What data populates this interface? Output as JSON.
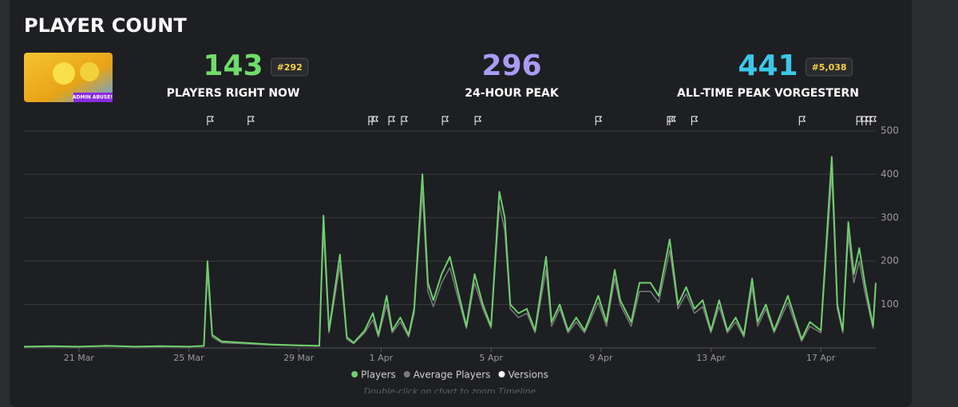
{
  "header": {
    "title": "PLAYER COUNT",
    "thumbnail_caption": "ADMIN ABUSE!"
  },
  "stats": [
    {
      "value": "143",
      "badge": "#292",
      "label": "PLAYERS RIGHT NOW",
      "color": "#6fdc6a"
    },
    {
      "value": "296",
      "label": "24-HOUR PEAK",
      "color": "#a99cf5"
    },
    {
      "value": "441",
      "badge": "#5,038",
      "label": "ALL-TIME PEAK VORGESTERN",
      "color": "#3cc8e8"
    }
  ],
  "chart_data": {
    "type": "line",
    "x": [
      -2,
      -1,
      0,
      1,
      2,
      3,
      4,
      4.55,
      4.68,
      4.85,
      5.2,
      6,
      7,
      8,
      8.75,
      8.9,
      9.1,
      9.5,
      9.75,
      10,
      10.4,
      10.7,
      10.9,
      11.2,
      11.4,
      11.7,
      12,
      12.2,
      12.5,
      12.7,
      12.9,
      13.2,
      13.5,
      13.8,
      14.1,
      14.4,
      14.7,
      15,
      15.3,
      15.5,
      15.7,
      16,
      16.3,
      16.6,
      17,
      17.2,
      17.5,
      17.8,
      18.1,
      18.4,
      18.9,
      19.2,
      19.5,
      19.7,
      20.1,
      20.4,
      20.8,
      21.1,
      21.5,
      21.8,
      22.1,
      22.4,
      22.7,
      23,
      23.3,
      23.6,
      23.9,
      24.2,
      24.5,
      24.7,
      25,
      25.3,
      25.8,
      26.1,
      26.3,
      26.6,
      27,
      27.4,
      27.6,
      27.8,
      28,
      28.2,
      28.4,
      28.6,
      28.9,
      29
    ],
    "series": [
      {
        "name": "Players",
        "color": "#6fcf6f",
        "values": [
          3,
          4,
          3,
          5,
          3,
          4,
          3,
          5,
          200,
          30,
          15,
          12,
          8,
          6,
          5,
          305,
          40,
          215,
          25,
          12,
          40,
          80,
          30,
          120,
          40,
          70,
          30,
          90,
          400,
          150,
          110,
          170,
          210,
          130,
          50,
          170,
          100,
          50,
          360,
          300,
          100,
          80,
          90,
          40,
          210,
          60,
          100,
          40,
          70,
          40,
          120,
          60,
          180,
          110,
          60,
          150,
          150,
          120,
          250,
          100,
          140,
          90,
          110,
          40,
          110,
          40,
          70,
          30,
          160,
          60,
          100,
          40,
          120,
          60,
          20,
          60,
          40,
          440,
          100,
          40,
          290,
          170,
          230,
          150,
          50,
          150
        ]
      },
      {
        "name": "Average Players",
        "color": "#7a7a7a",
        "values": [
          3,
          3,
          3,
          4,
          3,
          3,
          3,
          4,
          170,
          25,
          12,
          10,
          7,
          5,
          4,
          270,
          35,
          190,
          20,
          10,
          35,
          65,
          25,
          100,
          35,
          60,
          25,
          80,
          360,
          130,
          95,
          150,
          185,
          115,
          45,
          150,
          90,
          45,
          330,
          270,
          90,
          70,
          80,
          35,
          180,
          50,
          90,
          35,
          60,
          35,
          105,
          50,
          160,
          100,
          50,
          130,
          130,
          105,
          225,
          90,
          125,
          80,
          95,
          35,
          95,
          35,
          60,
          25,
          140,
          50,
          90,
          35,
          105,
          50,
          15,
          50,
          35,
          400,
          90,
          35,
          260,
          150,
          200,
          130,
          45,
          140
        ]
      }
    ],
    "versions": {
      "name": "Versions",
      "color": "#ffffff",
      "x": [
        4.68,
        6.16,
        10.55,
        10.67,
        11.28,
        11.74,
        13.23,
        14.42,
        18.81,
        21.42,
        21.5,
        22.3,
        26.22,
        28.31,
        28.5,
        28.65,
        28.8
      ]
    },
    "xlim": [
      -2,
      29
    ],
    "xticks": [
      {
        "value": 0,
        "label": "21 Mar"
      },
      {
        "value": 4,
        "label": "25 Mar"
      },
      {
        "value": 8,
        "label": "29 Mar"
      },
      {
        "value": 11,
        "label": "1 Apr"
      },
      {
        "value": 15,
        "label": "5 Apr"
      },
      {
        "value": 19,
        "label": "9 Apr"
      },
      {
        "value": 23,
        "label": "13 Apr"
      },
      {
        "value": 27,
        "label": "17 Apr"
      }
    ],
    "ylim": [
      0,
      500
    ],
    "yticks": [
      100,
      200,
      300,
      400,
      500
    ],
    "grid": true,
    "note": "Double-click on chart to zoom Timeline"
  }
}
